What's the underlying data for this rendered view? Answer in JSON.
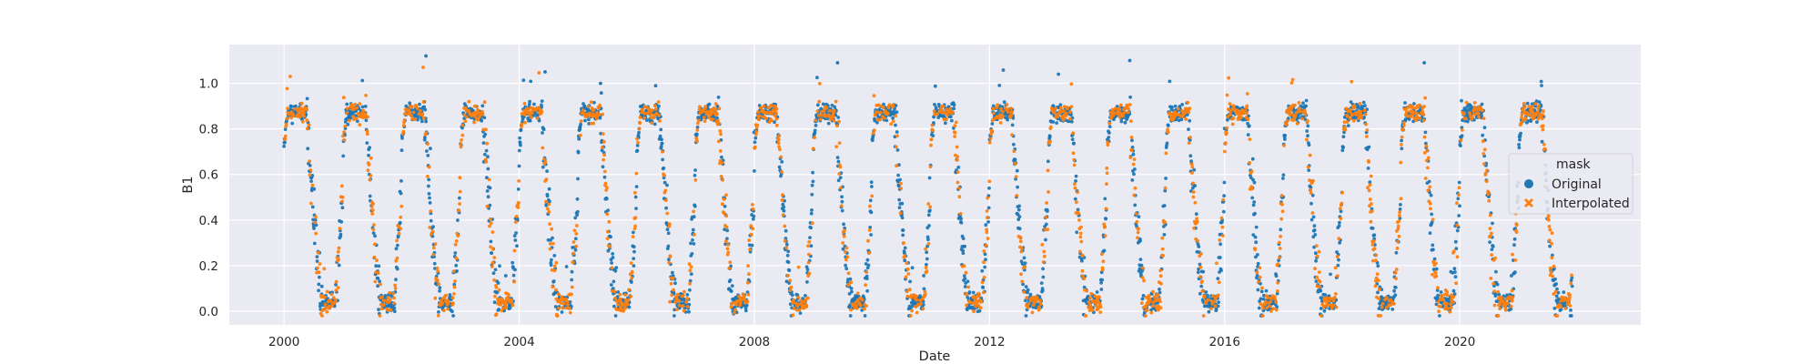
{
  "chart_data": {
    "type": "scatter",
    "title": "",
    "xlabel": "Date",
    "ylabel": "B1",
    "xlim": [
      "1999-01-26",
      "2023-01-29"
    ],
    "ylim": [
      -0.06,
      1.17
    ],
    "x_ticks": [
      "2000",
      "2004",
      "2008",
      "2012",
      "2016",
      "2020"
    ],
    "x_tick_dates": [
      "2000-01-01",
      "2004-01-01",
      "2008-01-01",
      "2012-01-01",
      "2016-01-01",
      "2020-01-01"
    ],
    "y_ticks": [
      "0.0",
      "0.2",
      "0.4",
      "0.6",
      "0.8",
      "1.0"
    ],
    "y_tick_values": [
      0.0,
      0.2,
      0.4,
      0.6,
      0.8,
      1.0
    ],
    "grid": true,
    "background": "#eaeaf2",
    "legend": {
      "title": "mask",
      "placement": "center-right",
      "entries": [
        {
          "label": "Original",
          "color": "#1f77b4",
          "marker": "circle"
        },
        {
          "label": "Interpolated",
          "color": "#ff7f0e",
          "marker": "x"
        }
      ]
    },
    "date_range": [
      "2000-01-01",
      "2021-11-30"
    ],
    "pattern": "Seasonal cycle each year: B1 near 0.8-0.95 from roughly February to May, dropping through 0.6-0.2 during June-July and near 0.0-0.1 from August to November before rising again; occasional outliers up to about 1.12 (mid-2002)",
    "series": [
      {
        "name": "Original",
        "color": "#1f77b4",
        "marker": "circle"
      },
      {
        "name": "Interpolated",
        "color": "#ff7f0e",
        "marker": "x"
      }
    ]
  }
}
